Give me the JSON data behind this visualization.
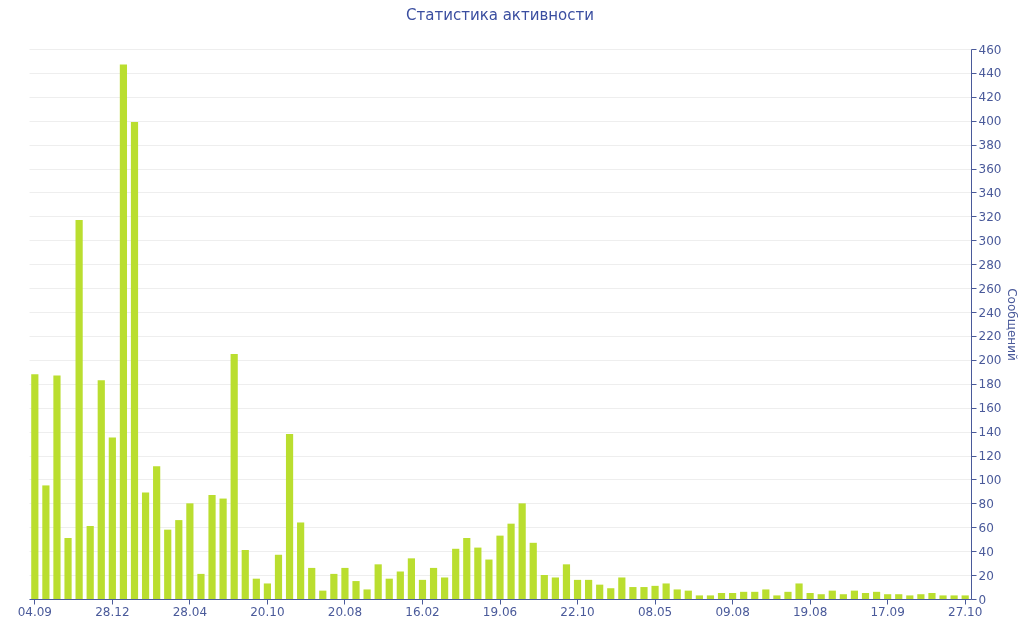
{
  "chart_data": {
    "type": "bar",
    "title": "Статистика активности",
    "ylabel": "Сообщений",
    "color": "#bade2f",
    "categories": [
      "04.09",
      null,
      null,
      null,
      null,
      null,
      null,
      "28.12",
      null,
      null,
      null,
      null,
      null,
      null,
      "28.04",
      null,
      null,
      null,
      null,
      null,
      null,
      "20.10",
      null,
      null,
      null,
      null,
      null,
      null,
      "20.08",
      null,
      null,
      null,
      null,
      null,
      null,
      "16.02",
      null,
      null,
      null,
      null,
      null,
      null,
      "19.06",
      null,
      null,
      null,
      null,
      null,
      null,
      "22.10",
      null,
      null,
      null,
      null,
      null,
      null,
      "08.05",
      null,
      null,
      null,
      null,
      null,
      null,
      "09.08",
      null,
      null,
      null,
      null,
      null,
      null,
      "19.08",
      null,
      null,
      null,
      null,
      null,
      null,
      "17.09",
      null,
      null,
      null,
      null,
      null,
      null,
      "27.10"
    ],
    "values": [
      188,
      95,
      187,
      51,
      317,
      61,
      183,
      135,
      447,
      399,
      89,
      111,
      58,
      66,
      80,
      21,
      87,
      84,
      205,
      41,
      17,
      13,
      37,
      138,
      64,
      26,
      7,
      21,
      26,
      15,
      8,
      29,
      17,
      23,
      34,
      16,
      26,
      18,
      42,
      51,
      43,
      33,
      53,
      63,
      80,
      47,
      20,
      18,
      29,
      16,
      16,
      12,
      9,
      18,
      10,
      10,
      11,
      13,
      8,
      7,
      3,
      3,
      5,
      5,
      6,
      6,
      8,
      3,
      6,
      13,
      5,
      4,
      7,
      4,
      7,
      5,
      6,
      4,
      4,
      3,
      4,
      5,
      3,
      3,
      3
    ],
    "ylim": [
      0,
      460
    ],
    "yticks": [
      0,
      20,
      40,
      60,
      80,
      100,
      120,
      140,
      160,
      180,
      200,
      220,
      240,
      260,
      280,
      300,
      320,
      340,
      360,
      380,
      400,
      420,
      440,
      460
    ],
    "grid": "y"
  }
}
